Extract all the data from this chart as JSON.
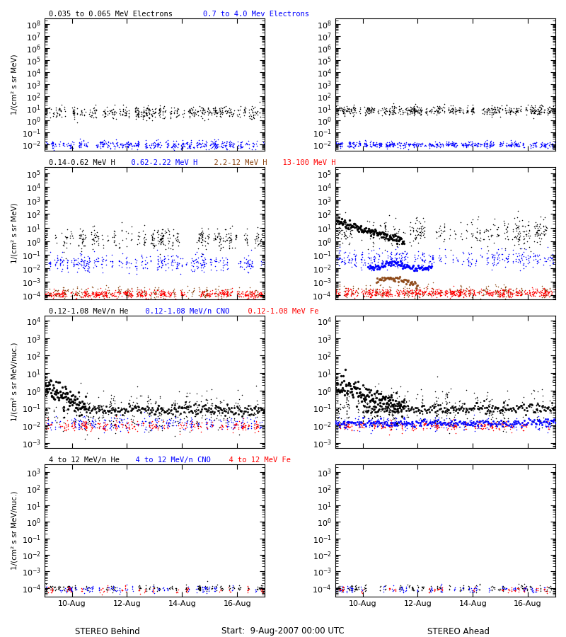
{
  "figsize": [
    8.0,
    9.0
  ],
  "dpi": 100,
  "background": "white",
  "nrows": 4,
  "ncols": 2,
  "rows": [
    {
      "ylabel": "1/(cm² s sr MeV)",
      "ylim": [
        0.003,
        300000000.0
      ],
      "left_title": [
        {
          "text": "0.035 to 0.065 MeV Electrons",
          "color": "black"
        },
        {
          "text": "    0.7 to 4.0 Mev Electrons",
          "color": "blue"
        }
      ],
      "right_title": [],
      "left_series": [
        {
          "color": "black",
          "log_mean": 0.7,
          "log_std": 0.25,
          "n": 500
        },
        {
          "color": "blue",
          "log_mean": -2.0,
          "log_std": 0.18,
          "n": 500
        }
      ],
      "right_series": [
        {
          "color": "black",
          "log_mean": 0.85,
          "log_std": 0.18,
          "n": 600
        },
        {
          "color": "blue",
          "log_mean": -2.0,
          "log_std": 0.12,
          "n": 600
        }
      ]
    },
    {
      "ylabel": "1/(cm² s sr MeV)",
      "ylim": [
        5e-05,
        300000.0
      ],
      "left_title": [
        {
          "text": "0.14-0.62 MeV H",
          "color": "black"
        },
        {
          "text": "  0.62-2.22 MeV H",
          "color": "blue"
        },
        {
          "text": "  2.2-12 MeV H",
          "color": "#8B4513"
        },
        {
          "text": "  13-100 MeV H",
          "color": "red"
        }
      ],
      "right_title": [],
      "left_series": [
        {
          "color": "black",
          "log_mean": 0.2,
          "log_std": 0.4,
          "n": 400
        },
        {
          "color": "blue",
          "log_mean": -1.6,
          "log_std": 0.3,
          "n": 400
        },
        {
          "color": "#8B4513",
          "log_mean": -3.8,
          "log_std": 0.2,
          "n": 300
        },
        {
          "color": "red",
          "log_mean": -3.9,
          "log_std": 0.15,
          "n": 600
        }
      ],
      "right_series": [
        {
          "color": "black",
          "log_mean": 0.6,
          "log_std": 0.5,
          "n": 400
        },
        {
          "color": "blue",
          "log_mean": -1.3,
          "log_std": 0.35,
          "n": 400
        },
        {
          "color": "#8B4513",
          "log_mean": -3.7,
          "log_std": 0.25,
          "n": 300
        },
        {
          "color": "red",
          "log_mean": -3.8,
          "log_std": 0.15,
          "n": 700
        }
      ]
    },
    {
      "ylabel": "1/(cm² s sr MeV/nuc.)",
      "ylim": [
        0.0005,
        20000.0
      ],
      "left_title": [
        {
          "text": "0.12-1.08 MeV/n He",
          "color": "black"
        },
        {
          "text": "  0.12-1.08 MeV/n CNO",
          "color": "blue"
        },
        {
          "text": "  0.12-1.08 MeV Fe",
          "color": "red"
        }
      ],
      "right_title": [],
      "left_series": [
        {
          "color": "black",
          "log_mean": -1.2,
          "log_std": 0.5,
          "n": 400
        },
        {
          "color": "blue",
          "log_mean": -1.9,
          "log_std": 0.2,
          "n": 300
        },
        {
          "color": "red",
          "log_mean": -2.0,
          "log_std": 0.15,
          "n": 300
        }
      ],
      "right_series": [
        {
          "color": "black",
          "log_mean": -1.0,
          "log_std": 0.6,
          "n": 400
        },
        {
          "color": "blue",
          "log_mean": -1.9,
          "log_std": 0.2,
          "n": 300
        },
        {
          "color": "red",
          "log_mean": -2.0,
          "log_std": 0.15,
          "n": 300
        }
      ]
    },
    {
      "ylabel": "1/(cm² s sr MeV/nuc.)",
      "ylim": [
        3e-05,
        3000.0
      ],
      "left_title": [
        {
          "text": "4 to 12 MeV/n He",
          "color": "black"
        },
        {
          "text": "  4 to 12 MeV/n CNO",
          "color": "blue"
        },
        {
          "text": "  4 to 12 MeV Fe",
          "color": "red"
        }
      ],
      "right_title": [],
      "left_series": [
        {
          "color": "black",
          "log_mean": -4.0,
          "log_std": 0.1,
          "n": 200
        },
        {
          "color": "blue",
          "log_mean": -4.05,
          "log_std": 0.1,
          "n": 150
        },
        {
          "color": "red",
          "log_mean": -4.1,
          "log_std": 0.1,
          "n": 100
        }
      ],
      "right_series": [
        {
          "color": "black",
          "log_mean": -4.0,
          "log_std": 0.1,
          "n": 200
        },
        {
          "color": "blue",
          "log_mean": -4.05,
          "log_std": 0.1,
          "n": 150
        },
        {
          "color": "red",
          "log_mean": -4.1,
          "log_std": 0.1,
          "n": 80
        }
      ]
    }
  ],
  "xtick_labels": [
    "10-Aug",
    "12-Aug",
    "14-Aug",
    "16-Aug"
  ],
  "xtick_positions": [
    1,
    3,
    5,
    7
  ],
  "xlabel_center": "Start:  9-Aug-2007 00:00 UTC",
  "xlabel_left": "STEREO Behind",
  "xlabel_right": "STEREO Ahead"
}
